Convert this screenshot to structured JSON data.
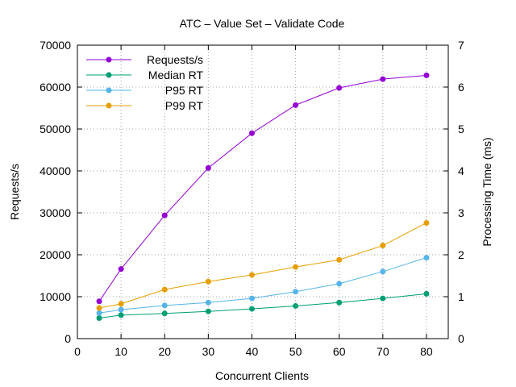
{
  "chart_data": {
    "type": "line",
    "title": "ATC – Value Set – Validate Code",
    "xlabel": "Concurrent Clients",
    "ylabel": "Requests/s",
    "y2label": "Processing Time (ms)",
    "xlim": [
      0,
      85
    ],
    "ylim": [
      0,
      70000
    ],
    "y2lim": [
      0,
      7
    ],
    "x_ticks": [
      0,
      10,
      20,
      30,
      40,
      50,
      60,
      70,
      80
    ],
    "y_ticks": [
      0,
      10000,
      20000,
      30000,
      40000,
      50000,
      60000,
      70000
    ],
    "y2_ticks": [
      0,
      1,
      2,
      3,
      4,
      5,
      6,
      7
    ],
    "grid": true,
    "legend_position": "top-left",
    "x": [
      5,
      10,
      20,
      30,
      40,
      50,
      60,
      70,
      80
    ],
    "series": [
      {
        "name": "Requests/s",
        "axis": "left",
        "color": "#9400d3",
        "values": [
          8900,
          16600,
          29400,
          40700,
          49000,
          55700,
          59800,
          61900,
          62800
        ]
      },
      {
        "name": "Median RT",
        "axis": "right",
        "color": "#009e73",
        "values": [
          0.49,
          0.56,
          0.6,
          0.65,
          0.71,
          0.78,
          0.86,
          0.96,
          1.07
        ]
      },
      {
        "name": "P95 RT",
        "axis": "right",
        "color": "#56b4e9",
        "values": [
          0.61,
          0.69,
          0.79,
          0.86,
          0.96,
          1.12,
          1.31,
          1.6,
          1.93
        ]
      },
      {
        "name": "P99 RT",
        "axis": "right",
        "color": "#e69f00",
        "values": [
          0.73,
          0.83,
          1.17,
          1.36,
          1.52,
          1.71,
          1.88,
          2.22,
          2.76
        ]
      }
    ]
  }
}
